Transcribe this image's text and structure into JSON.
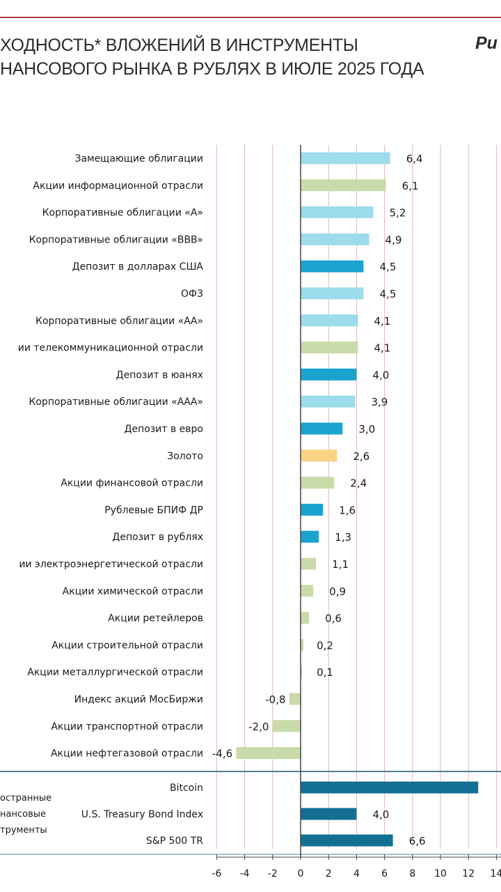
{
  "title_lines": [
    "ХОДНОСТЬ* ВЛОЖЕНИЙ В ИНСТРУМЕНТЫ",
    "НАНСОВОГО РЫНКА В РУБЛЯХ В ИЮЛЕ  2025 ГОДА"
  ],
  "figure_label": "Ри",
  "chart_data": {
    "type": "bar",
    "orientation": "horizontal",
    "xlim": [
      -6,
      14
    ],
    "x_ticks": [
      "-6",
      "-4",
      "-2",
      "0",
      "2",
      "4",
      "6",
      "8",
      "10",
      "12",
      "14"
    ],
    "grid": true,
    "categories": [
      "Замещающие облигации",
      "Акции информационной отрасли",
      "Корпоративные облигации «А»",
      "Корпоративные облигации «BBB»",
      "Депозит в долларах США",
      "ОФЗ",
      "Корпоративные облигации «АА»",
      "ии телекоммуникационной отрасли",
      "Депозит в юанях",
      "Корпоративные облигации «ААА»",
      "Депозит в евро",
      "Золото",
      "Акции финансовой отрасли",
      "Рублевые БПИФ ДР",
      "Депозит в рублях",
      "ии электроэнергетической отрасли",
      "Акции химической отрасли",
      "Акции ретейлеров",
      "Акции строительной отрасли",
      "Акции металлургической отрасли",
      "Индекс акций МосБиржи",
      "Акции транспортной отрасли",
      "Акции нефтегазовой отрасли",
      "Bitcoin",
      "U.S. Treasury Bond Index",
      "S&P 500 TR"
    ],
    "values": [
      6.4,
      6.1,
      5.2,
      4.9,
      4.5,
      4.5,
      4.1,
      4.1,
      4.0,
      3.9,
      3.0,
      2.6,
      2.4,
      1.6,
      1.3,
      1.1,
      0.9,
      0.6,
      0.2,
      0.1,
      -0.8,
      -2.0,
      -4.6,
      12.7,
      4.0,
      6.6
    ],
    "value_labels": [
      "6,4",
      "6,1",
      "5,2",
      "4,9",
      "4,5",
      "4,5",
      "4,1",
      "4,1",
      "4,0",
      "3,9",
      "3,0",
      "2,6",
      "2,4",
      "1,6",
      "1,3",
      "1,1",
      "0,9",
      "0,6",
      "0,2",
      "0,1",
      "-0,8",
      "-2,0",
      "-4,6",
      "",
      "4,0",
      "6,6"
    ],
    "bar_kinds": [
      "bond",
      "equity",
      "bond",
      "bond",
      "deposit",
      "bond",
      "bond",
      "equity",
      "deposit",
      "bond",
      "deposit",
      "gold",
      "equity",
      "deposit",
      "deposit",
      "equity",
      "equity",
      "equity",
      "equity",
      "equity",
      "equity",
      "equity",
      "equity",
      "foreign",
      "foreign",
      "foreign"
    ],
    "group_label": "остранные\nнансовые\nтрументы"
  },
  "colors": {
    "bond": "#9ddcea",
    "equity": "#c8dba9",
    "deposit": "#1aa3cf",
    "gold": "#fbd184",
    "foreign": "#136f93",
    "grid": "#dcb9b0",
    "axis": "#444444",
    "separator": "#4f7f93"
  }
}
